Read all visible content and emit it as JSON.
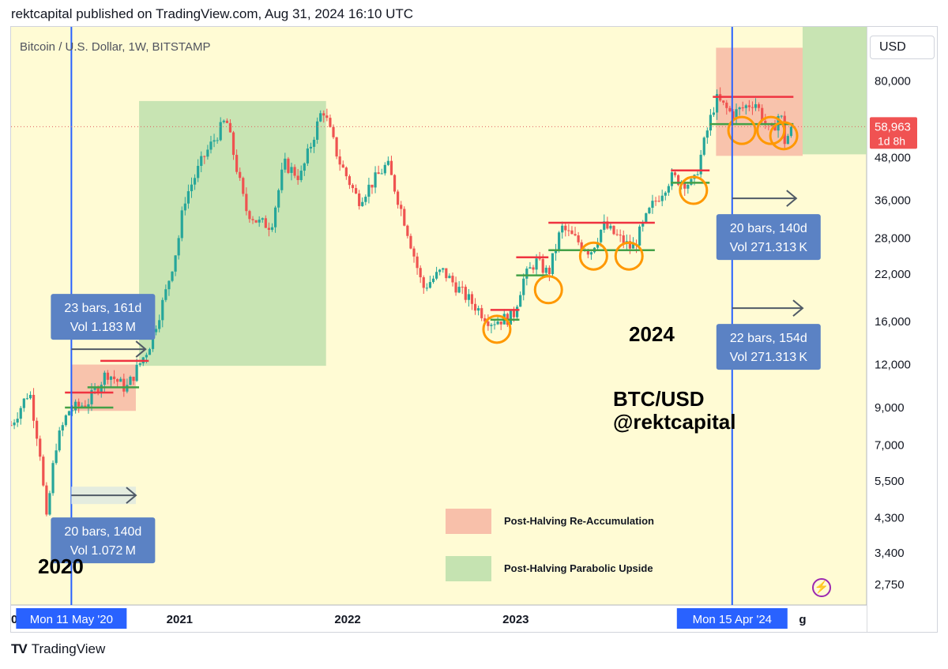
{
  "header": {
    "published": "rektcapital published on TradingView.com, Aug 31, 2024 16:10 UTC"
  },
  "symbol": {
    "title": "Bitcoin / U.S. Dollar, 1W, BITSTAMP",
    "currency": "USD"
  },
  "footer": {
    "brand": "TradingView",
    "logo_icon": "tradingview-logo-icon"
  },
  "colors": {
    "background": "#fffbd4",
    "candle_up": "#26a69a",
    "candle_down": "#ef5350",
    "green_zone": "#c5e3b1",
    "red_zone": "#f8c0aa",
    "halving_line": "#2962ff",
    "circle": "#ff9800",
    "measure_box": "#5b82c4",
    "price_tag": "#f05252",
    "resistance": "#ef3340",
    "support": "#43a047"
  },
  "chart_data": {
    "type": "candlestick",
    "title": "Bitcoin / U.S. Dollar, 1W, BITSTAMP",
    "y_scale": "log",
    "ylim": [
      2400,
      115000
    ],
    "y_ticks": [
      80000,
      48000,
      36000,
      28000,
      22000,
      16000,
      12000,
      9000,
      7000,
      5500,
      4300,
      3400,
      2750
    ],
    "y_tick_labels": [
      "80,000",
      "48,000",
      "36,000",
      "28,000",
      "22,000",
      "16,000",
      "12,000",
      "9,000",
      "7,000",
      "5,500",
      "4,300",
      "3,400",
      "2,750"
    ],
    "x_range": [
      "2020-01-01",
      "2025-02-01"
    ],
    "x_ticks": [
      {
        "date": "2020-01-01",
        "label": "20"
      },
      {
        "date": "2021-01-01",
        "label": "2021"
      },
      {
        "date": "2022-01-01",
        "label": "2022"
      },
      {
        "date": "2023-01-01",
        "label": "2023"
      },
      {
        "date": "2024-01-01",
        "label": "2"
      },
      {
        "date": "2024-09-15",
        "label": "g"
      }
    ],
    "current_price": {
      "value": 58963,
      "label": "58,963",
      "countdown": "1d 8h"
    },
    "price_path": [
      [
        "2020-01-01",
        8000
      ],
      [
        "2020-02-10",
        10100
      ],
      [
        "2020-03-08",
        6200
      ],
      [
        "2020-03-16",
        4000
      ],
      [
        "2020-04-06",
        6900
      ],
      [
        "2020-05-04",
        8800
      ],
      [
        "2020-06-15",
        9300
      ],
      [
        "2020-07-27",
        11400
      ],
      [
        "2020-09-07",
        10200
      ],
      [
        "2020-10-26",
        13500
      ],
      [
        "2020-11-30",
        19000
      ],
      [
        "2020-12-28",
        27000
      ],
      [
        "2021-01-11",
        36000
      ],
      [
        "2021-02-22",
        48000
      ],
      [
        "2021-04-12",
        62000
      ],
      [
        "2021-05-24",
        34000
      ],
      [
        "2021-06-21",
        31000
      ],
      [
        "2021-07-19",
        30500
      ],
      [
        "2021-08-16",
        46000
      ],
      [
        "2021-09-20",
        42000
      ],
      [
        "2021-11-08",
        67000
      ],
      [
        "2021-12-13",
        47000
      ],
      [
        "2022-01-24",
        36000
      ],
      [
        "2022-03-28",
        46000
      ],
      [
        "2022-05-09",
        30000
      ],
      [
        "2022-06-13",
        20000
      ],
      [
        "2022-07-25",
        22500
      ],
      [
        "2022-09-05",
        19500
      ],
      [
        "2022-11-07",
        16000
      ],
      [
        "2022-12-26",
        16500
      ],
      [
        "2023-01-16",
        21000
      ],
      [
        "2023-02-13",
        24000
      ],
      [
        "2023-03-13",
        22000
      ],
      [
        "2023-04-10",
        30000
      ],
      [
        "2023-06-12",
        25500
      ],
      [
        "2023-07-10",
        30500
      ],
      [
        "2023-09-11",
        26000
      ],
      [
        "2023-10-23",
        34500
      ],
      [
        "2023-12-04",
        42000
      ],
      [
        "2024-01-22",
        40000
      ],
      [
        "2024-02-26",
        61000
      ],
      [
        "2024-03-11",
        71000
      ],
      [
        "2024-04-15",
        64000
      ],
      [
        "2024-06-03",
        70000
      ],
      [
        "2024-07-08",
        56000
      ],
      [
        "2024-07-29",
        66000
      ],
      [
        "2024-08-05",
        53000
      ],
      [
        "2024-08-26",
        58963
      ]
    ],
    "halving_lines": [
      {
        "date": "2020-05-11",
        "label": "Mon 11 May '20"
      },
      {
        "date": "2024-04-15",
        "label": "Mon 15 Apr '24"
      }
    ],
    "zones": [
      {
        "kind": "parabolic",
        "x0": "2020-10-05",
        "x1": "2021-11-15",
        "y0": 11900,
        "y1": 70000
      },
      {
        "kind": "reaccumulation",
        "x0": "2020-05-11",
        "x1": "2020-09-28",
        "y0": 8800,
        "y1": 12000
      },
      {
        "kind": "reaccumulation",
        "x0": "2024-03-11",
        "x1": "2024-09-15",
        "y0": 48500,
        "y1": 100000
      },
      {
        "kind": "parabolic",
        "x0": "2024-09-15",
        "x1": "2025-02-01",
        "y0": 49000,
        "y1": 115000
      }
    ],
    "resistance_lines": [
      {
        "x0": "2020-04-27",
        "x1": "2020-08-10",
        "y": 9950
      },
      {
        "x0": "2020-07-13",
        "x1": "2020-10-26",
        "y": 12300
      },
      {
        "x0": "2022-11-07",
        "x1": "2023-01-09",
        "y": 17300
      },
      {
        "x0": "2023-01-02",
        "x1": "2023-03-13",
        "y": 24600
      },
      {
        "x0": "2023-03-13",
        "x1": "2023-10-30",
        "y": 31000
      },
      {
        "x0": "2023-12-04",
        "x1": "2024-02-26",
        "y": 44000
      },
      {
        "x0": "2024-03-04",
        "x1": "2024-08-26",
        "y": 72000
      }
    ],
    "support_lines": [
      {
        "x0": "2020-04-27",
        "x1": "2020-08-10",
        "y": 9000
      },
      {
        "x0": "2020-06-15",
        "x1": "2020-10-05",
        "y": 10300
      },
      {
        "x0": "2022-11-07",
        "x1": "2023-01-09",
        "y": 16200
      },
      {
        "x0": "2023-01-02",
        "x1": "2023-03-13",
        "y": 21800
      },
      {
        "x0": "2023-03-13",
        "x1": "2023-10-30",
        "y": 25800
      },
      {
        "x0": "2023-12-04",
        "x1": "2024-02-26",
        "y": 40500
      },
      {
        "x0": "2024-02-26",
        "x1": "2024-08-26",
        "y": 60000
      }
    ],
    "circles": [
      {
        "date": "2022-11-21",
        "y": 15200
      },
      {
        "date": "2023-03-13",
        "y": 19800
      },
      {
        "date": "2023-06-19",
        "y": 24800
      },
      {
        "date": "2023-09-04",
        "y": 24800
      },
      {
        "date": "2024-01-22",
        "y": 38500
      },
      {
        "date": "2024-05-06",
        "y": 57500
      },
      {
        "date": "2024-07-08",
        "y": 57500
      },
      {
        "date": "2024-08-05",
        "y": 55500
      }
    ],
    "measure_arrows": [
      {
        "x0": "2020-05-11",
        "x1": "2020-10-19",
        "y": 13300,
        "style": "line"
      },
      {
        "x0": "2020-05-11",
        "x1": "2020-09-28",
        "y": 5000,
        "style": "box"
      },
      {
        "x0": "2024-04-15",
        "x1": "2024-09-01",
        "y": 36500,
        "style": "line"
      },
      {
        "x0": "2024-04-15",
        "x1": "2024-09-15",
        "y": 17500,
        "style": "line"
      }
    ],
    "measure_labels": [
      {
        "line1": "23 bars, 161d",
        "line2": "Vol 1.183 M"
      },
      {
        "line1": "20 bars, 140d",
        "line2": "Vol 1.072 M"
      },
      {
        "line1": "20 bars, 140d",
        "line2": "Vol 271.313 K"
      },
      {
        "line1": "22 bars, 154d",
        "line2": "Vol 271.313 K"
      }
    ],
    "annotations": [
      {
        "text": "2020"
      },
      {
        "text": "2024"
      },
      {
        "text": "BTC/USD"
      },
      {
        "text": "@rektcapital"
      }
    ],
    "legend": [
      {
        "kind": "reaccumulation",
        "label": "Post-Halving Re-Accumulation"
      },
      {
        "kind": "parabolic",
        "label": "Post-Halving Parabolic Upside"
      }
    ]
  }
}
